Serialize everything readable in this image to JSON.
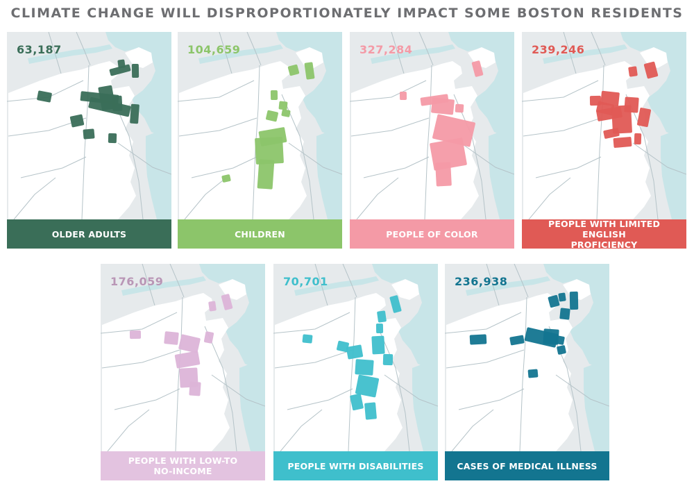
{
  "title": "CLIMATE CHANGE WILL DISPROPORTIONATELY IMPACT SOME BOSTON RESIDENTS",
  "map_colors": {
    "water": "#c8e5e8",
    "outside_land": "#e6eaec",
    "city_land": "#ffffff",
    "roads": "#b5c3c8"
  },
  "panels": [
    {
      "count": "63,187",
      "label": "OLDER ADULTS",
      "color": "#3a6e58",
      "label_bg": "#3a6e58",
      "count_color": "#3a6e58"
    },
    {
      "count": "104,659",
      "label": "CHILDREN",
      "color": "#8cc56a",
      "label_bg": "#8cc56a",
      "count_color": "#8cc56a"
    },
    {
      "count": "327,284",
      "label": "PEOPLE OF COLOR",
      "color": "#f49aa6",
      "label_bg": "#f49aa6",
      "count_color": "#f49aa6"
    },
    {
      "count": "239,246",
      "label": "PEOPLE WITH LIMITED ENGLISH\nPROFICIENCY",
      "color": "#e05a55",
      "label_bg": "#e05a55",
      "count_color": "#e05a55"
    },
    {
      "count": "176,059",
      "label": "PEOPLE WITH LOW-TO\nNO-INCOME",
      "color": "#dcb4d8",
      "label_bg": "#e3c3e0",
      "count_color": "#b996b6"
    },
    {
      "count": "70,701",
      "label": "PEOPLE WITH DISABILITIES",
      "color": "#3fbfcc",
      "label_bg": "#3fbfcc",
      "count_color": "#3fbfcc"
    },
    {
      "count": "236,938",
      "label": "CASES OF MEDICAL ILLNESS",
      "color": "#137590",
      "label_bg": "#137590",
      "count_color": "#137590"
    }
  ]
}
